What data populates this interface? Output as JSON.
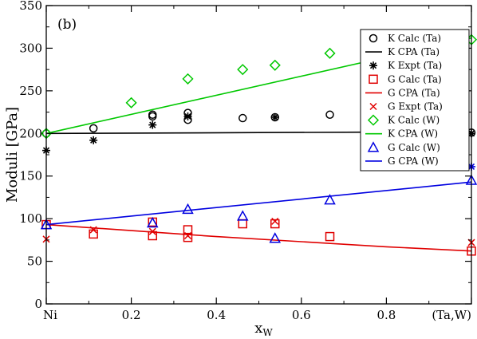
{
  "chart_data": {
    "type": "scatter",
    "panel_label": "(b)",
    "xlabel": "x",
    "xlabel_sub": "W",
    "ylabel": "Moduli  [GPa]",
    "xlim": [
      0,
      1
    ],
    "ylim": [
      0,
      350
    ],
    "x_ticks": [
      {
        "value": 0,
        "label": "Ni"
      },
      {
        "value": 0.2,
        "label": "0.2"
      },
      {
        "value": 0.4,
        "label": "0.4"
      },
      {
        "value": 0.6,
        "label": "0.6"
      },
      {
        "value": 0.8,
        "label": "0.8"
      },
      {
        "value": 1,
        "label": "(Ta,W)"
      }
    ],
    "y_ticks": [
      0,
      50,
      100,
      150,
      200,
      250,
      300,
      350
    ],
    "grid": false,
    "legend_position": "top-right",
    "series": [
      {
        "name": "K Calc (Ta)",
        "kind": "markers",
        "marker": "circle",
        "color": "#000000",
        "points": [
          [
            0,
            200
          ],
          [
            0.111,
            206
          ],
          [
            0.25,
            222
          ],
          [
            0.25,
            220
          ],
          [
            0.333,
            224
          ],
          [
            0.333,
            216
          ],
          [
            0.462,
            218
          ],
          [
            0.538,
            219
          ],
          [
            0.667,
            222
          ],
          [
            1,
            201
          ]
        ]
      },
      {
        "name": "K CPA (Ta)",
        "kind": "line",
        "color": "#000000",
        "points": [
          [
            0,
            200
          ],
          [
            0.25,
            200.5
          ],
          [
            0.5,
            201
          ],
          [
            0.75,
            201.5
          ],
          [
            1,
            202
          ]
        ]
      },
      {
        "name": "K Expt (Ta)",
        "kind": "markers",
        "marker": "asterisk",
        "color": "#000000",
        "points": [
          [
            0,
            180
          ],
          [
            0.111,
            192
          ],
          [
            0.25,
            210
          ],
          [
            0.333,
            220
          ],
          [
            0.538,
            219
          ],
          [
            1,
            200
          ]
        ]
      },
      {
        "name": "G Calc (Ta)",
        "kind": "markers",
        "marker": "square",
        "color": "#e00000",
        "points": [
          [
            0,
            93
          ],
          [
            0.111,
            82
          ],
          [
            0.25,
            96
          ],
          [
            0.25,
            80
          ],
          [
            0.333,
            87
          ],
          [
            0.333,
            78
          ],
          [
            0.462,
            94
          ],
          [
            0.538,
            94
          ],
          [
            0.667,
            79
          ],
          [
            1,
            62
          ]
        ]
      },
      {
        "name": "G CPA (Ta)",
        "kind": "line",
        "color": "#e00000",
        "points": [
          [
            0,
            93
          ],
          [
            0.2,
            86
          ],
          [
            0.4,
            79
          ],
          [
            0.6,
            73
          ],
          [
            0.8,
            67
          ],
          [
            1,
            62
          ]
        ]
      },
      {
        "name": "G Expt (Ta)",
        "kind": "markers",
        "marker": "cross",
        "color": "#e00000",
        "points": [
          [
            0,
            76
          ],
          [
            0.111,
            87
          ],
          [
            0.25,
            85
          ],
          [
            0.333,
            80
          ],
          [
            0.538,
            97
          ],
          [
            1,
            72
          ]
        ]
      },
      {
        "name": "K Calc (W)",
        "kind": "markers",
        "marker": "diamond",
        "color": "#00c800",
        "points": [
          [
            0,
            200
          ],
          [
            0.2,
            236
          ],
          [
            0.333,
            264
          ],
          [
            0.462,
            275
          ],
          [
            0.538,
            280
          ],
          [
            0.667,
            294
          ],
          [
            1,
            310
          ]
        ]
      },
      {
        "name": "K CPA (W)",
        "kind": "line",
        "color": "#00c800",
        "points": [
          [
            0,
            200
          ],
          [
            1,
            312
          ]
        ]
      },
      {
        "name": "G Calc (W)",
        "kind": "markers",
        "marker": "triangle",
        "color": "#0000e0",
        "points": [
          [
            0,
            93
          ],
          [
            0.25,
            95
          ],
          [
            0.333,
            111
          ],
          [
            0.462,
            103
          ],
          [
            0.538,
            77
          ],
          [
            0.667,
            122
          ],
          [
            1,
            145
          ]
        ]
      },
      {
        "name": "G CPA (W)",
        "kind": "line",
        "color": "#0000e0",
        "points": [
          [
            0,
            93
          ],
          [
            1,
            143
          ]
        ]
      },
      {
        "name": "",
        "kind": "markers",
        "marker": "asterisk",
        "color": "#0000e0",
        "in_legend": false,
        "points": [
          [
            1,
            161
          ]
        ]
      }
    ]
  }
}
